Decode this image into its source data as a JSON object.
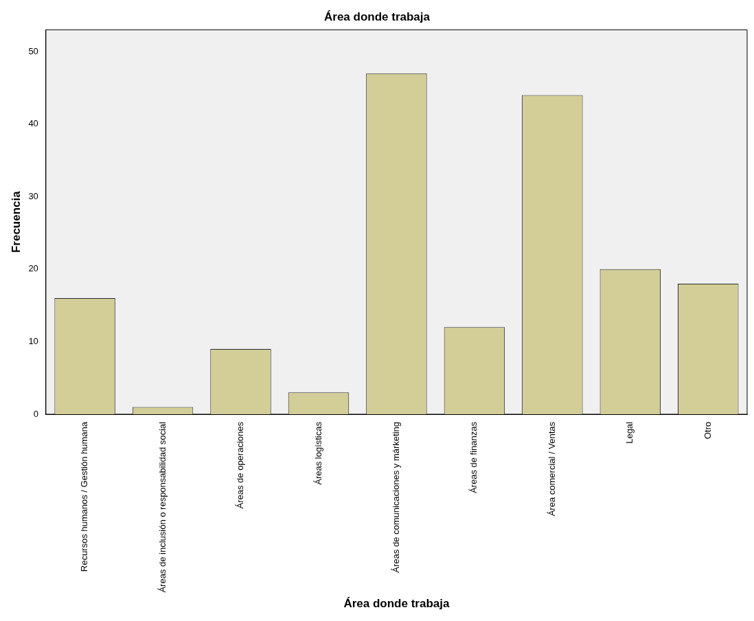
{
  "chart_data": {
    "type": "bar",
    "title": "Área donde trabaja",
    "xlabel": "Área donde trabaja",
    "ylabel": "Frecuencia",
    "categories": [
      "Recursos humanos / Gestión humana",
      "Áreas de inclusión o responsabilidad social",
      "Áreas de operaciones",
      "Áreas logísticas",
      "Áreas de comunicaciones y márketing",
      "Áreas de finanzas",
      "Área comercial / Ventas",
      "Legal",
      "Otro"
    ],
    "values": [
      16,
      1,
      9,
      3,
      47,
      12,
      44,
      20,
      18
    ],
    "color": "#d3ce97",
    "ylim": [
      0,
      53
    ],
    "yticks": [
      0,
      10,
      20,
      30,
      40,
      50
    ],
    "grid": false,
    "legend": false
  }
}
